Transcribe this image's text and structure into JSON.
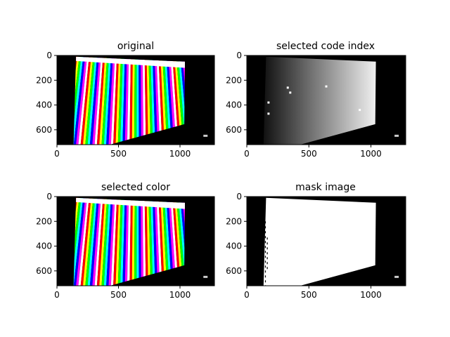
{
  "chart_data": [
    {
      "type": "image",
      "title": "original",
      "xlim": [
        0,
        1280
      ],
      "ylim": [
        720,
        0
      ],
      "xticks": [
        0,
        500,
        1000
      ],
      "yticks": [
        0,
        200,
        400,
        600
      ],
      "x_tick_labels": [
        "0",
        "500",
        "1000"
      ],
      "y_tick_labels": [
        "0",
        "200",
        "400",
        "600"
      ],
      "content": "color-stripes",
      "colors": [
        "#ff0000",
        "#ffff00",
        "#00ff00",
        "#00ffff",
        "#0000ff",
        "#ff00ff",
        "#ffffff"
      ]
    },
    {
      "type": "image",
      "title": "selected code index",
      "xlim": [
        0,
        1280
      ],
      "ylim": [
        720,
        0
      ],
      "xticks": [
        0,
        500,
        1000
      ],
      "yticks": [
        0,
        200,
        400,
        600
      ],
      "x_tick_labels": [
        "0",
        "500",
        "1000"
      ],
      "y_tick_labels": [
        "0",
        "200",
        "400",
        "600"
      ],
      "content": "gray-gradient"
    },
    {
      "type": "image",
      "title": "selected color",
      "xlim": [
        0,
        1280
      ],
      "ylim": [
        720,
        0
      ],
      "xticks": [
        0,
        500,
        1000
      ],
      "yticks": [
        0,
        200,
        400,
        600
      ],
      "x_tick_labels": [
        "0",
        "500",
        "1000"
      ],
      "y_tick_labels": [
        "0",
        "200",
        "400",
        "600"
      ],
      "content": "color-stripes",
      "colors": [
        "#ff0000",
        "#ffff00",
        "#00ff00",
        "#00ffff",
        "#0000ff",
        "#ff00ff",
        "#ffffff"
      ]
    },
    {
      "type": "image",
      "title": "mask image",
      "xlim": [
        0,
        1280
      ],
      "ylim": [
        720,
        0
      ],
      "xticks": [
        0,
        500,
        1000
      ],
      "yticks": [
        0,
        200,
        400,
        600
      ],
      "x_tick_labels": [
        "0",
        "500",
        "1000"
      ],
      "y_tick_labels": [
        "0",
        "200",
        "400",
        "600"
      ],
      "content": "white-mask"
    }
  ]
}
